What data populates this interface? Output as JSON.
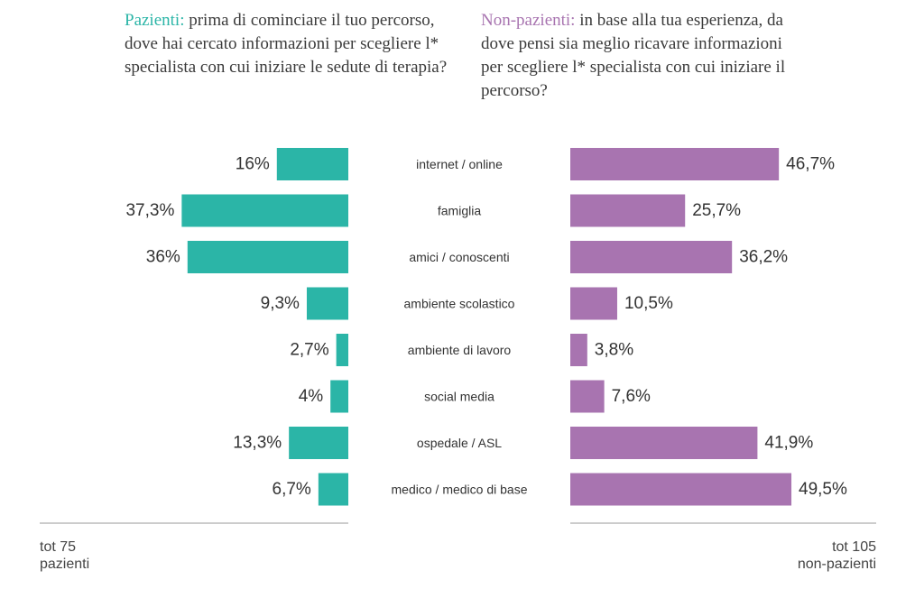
{
  "questions": {
    "left": {
      "lead": "Pazienti:",
      "text": " prima di cominciare il tuo percorso, dove hai cercato informazioni per scegliere l* specialista con cui iniziare le sedute di terapia?"
    },
    "right": {
      "lead": "Non-pazienti:",
      "text": " in base alla tua esperienza, da dove pensi sia meglio ricavare informazioni per scegliere l* specialista con cui iniziare il percorso?"
    }
  },
  "footer": {
    "left_line1": "tot 75",
    "left_line2": "pazienti",
    "right_line1": "tot 105",
    "right_line2": "non-pazienti"
  },
  "colors": {
    "pazienti": "#2bb5a7",
    "non_pazienti": "#a874b0",
    "text": "#333333",
    "axis": "#999999"
  },
  "chart_data": {
    "type": "bar",
    "orientation": "horizontal-butterfly",
    "categories": [
      "internet / online",
      "famiglia",
      "amici / conoscenti",
      "ambiente scolastico",
      "ambiente di lavoro",
      "social media",
      "ospedale / ASL",
      "medico / medico di base"
    ],
    "series": [
      {
        "name": "Pazienti",
        "values": [
          16,
          37.3,
          36,
          9.3,
          2.7,
          4,
          13.3,
          6.7
        ],
        "labels": [
          "16%",
          "37,3%",
          "36%",
          "9,3%",
          "2,7%",
          "4%",
          "13,3%",
          "6,7%"
        ]
      },
      {
        "name": "Non-pazienti",
        "values": [
          46.7,
          25.7,
          36.2,
          10.5,
          3.8,
          7.6,
          41.9,
          49.5
        ],
        "labels": [
          "46,7%",
          "25,7%",
          "36,2%",
          "10,5%",
          "3,8%",
          "7,6%",
          "41,9%",
          "49,5%"
        ]
      }
    ],
    "unit": "%"
  }
}
